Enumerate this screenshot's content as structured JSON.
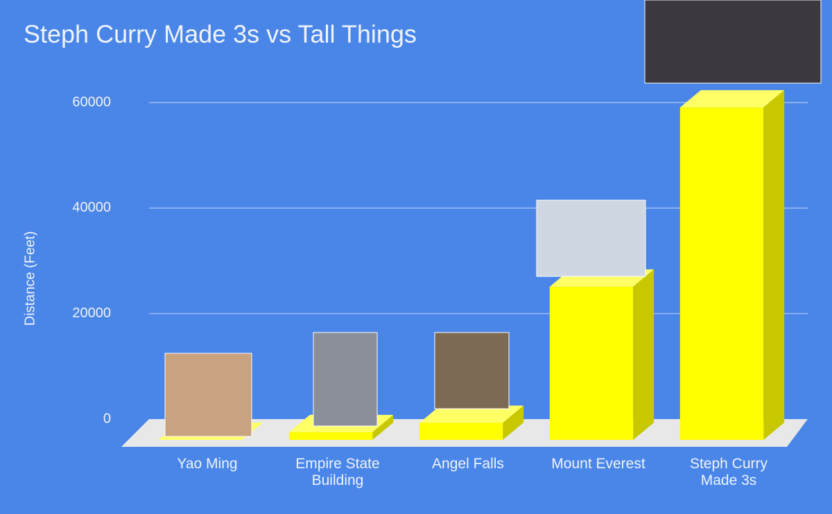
{
  "chart_data": {
    "type": "bar3d",
    "title": "Steph Curry Made 3s vs Tall Things",
    "y_label": "Distance (Feet)",
    "categories": [
      "Yao Ming",
      "Empire State Building",
      "Angel Falls",
      "Mount Everest",
      "Steph Curry Made 3s"
    ],
    "values": [
      7.5,
      1454,
      3212,
      29029,
      63000
    ],
    "color": "#ffff00",
    "ylim": [
      0,
      66000
    ],
    "yticks": [
      0,
      20000,
      40000,
      60000
    ],
    "grid": true
  }
}
